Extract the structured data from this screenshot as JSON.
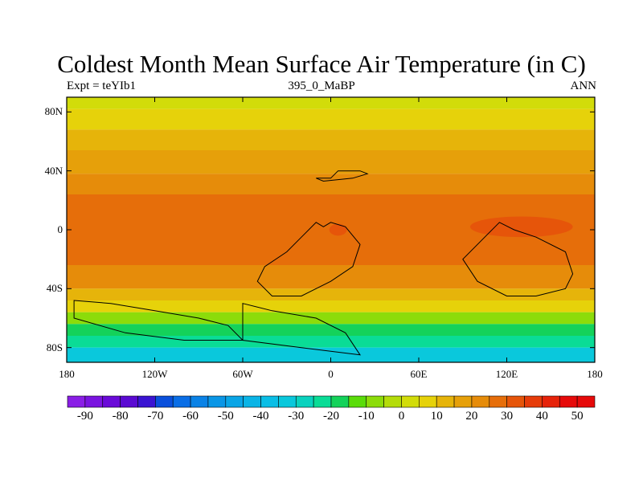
{
  "title": "Coldest Month Mean Surface Air Temperature (in C)",
  "left_subtitle": "Expt = teYIb1",
  "center_subtitle": "395_0_MaBP",
  "right_subtitle": "ANN",
  "lat_ticks": [
    {
      "lat": 80,
      "label": "80N"
    },
    {
      "lat": 40,
      "label": "40N"
    },
    {
      "lat": 0,
      "label": "0"
    },
    {
      "lat": -40,
      "label": "40S"
    },
    {
      "lat": -80,
      "label": "80S"
    }
  ],
  "lon_ticks": [
    {
      "lon": -180,
      "label": "180"
    },
    {
      "lon": -120,
      "label": "120W"
    },
    {
      "lon": -60,
      "label": "60W"
    },
    {
      "lon": 0,
      "label": "0"
    },
    {
      "lon": 60,
      "label": "60E"
    },
    {
      "lon": 120,
      "label": "120E"
    },
    {
      "lon": 180,
      "label": "180"
    }
  ],
  "colorbar": {
    "min": -95,
    "max": 55,
    "step": 5,
    "labels": [
      "-90",
      "-80",
      "-70",
      "-60",
      "-50",
      "-40",
      "-30",
      "-20",
      "-10",
      "0",
      "10",
      "20",
      "30",
      "40",
      "50"
    ],
    "colors": [
      "#8a1ee6",
      "#7a14e0",
      "#6a0ad8",
      "#5a0ad2",
      "#3a14d2",
      "#0a50dc",
      "#0a6ee6",
      "#0a82e6",
      "#0a96e6",
      "#0aa5e6",
      "#0ab4e6",
      "#0abee6",
      "#0ac8dc",
      "#0ad2be",
      "#0adc96",
      "#14d25a",
      "#5adc0a",
      "#8cdc0a",
      "#b4dc0a",
      "#d2dc0a",
      "#e6d20a",
      "#e6b40a",
      "#e6a00a",
      "#e68c0a",
      "#e66e0a",
      "#e6550a",
      "#e63c0a",
      "#e6230a",
      "#e60a0a",
      "#e60a0a"
    ]
  },
  "map_data": {
    "lon_range": [
      -180,
      180
    ],
    "lat_range": [
      -90,
      90
    ],
    "bands": [
      {
        "lat_top": 90,
        "lat_bottom": 82,
        "value": 3
      },
      {
        "lat_top": 82,
        "lat_bottom": 68,
        "value": 6
      },
      {
        "lat_top": 68,
        "lat_bottom": 54,
        "value": 11
      },
      {
        "lat_top": 54,
        "lat_bottom": 38,
        "value": 16
      },
      {
        "lat_top": 38,
        "lat_bottom": 24,
        "value": 22
      },
      {
        "lat_top": 24,
        "lat_bottom": -24,
        "value": 28
      },
      {
        "lat_top": -24,
        "lat_bottom": -40,
        "value": 22
      },
      {
        "lat_top": -40,
        "lat_bottom": -48,
        "value": 14
      },
      {
        "lat_top": -48,
        "lat_bottom": -56,
        "value": 6
      },
      {
        "lat_top": -56,
        "lat_bottom": -64,
        "value": -6
      },
      {
        "lat_top": -64,
        "lat_bottom": -72,
        "value": -16
      },
      {
        "lat_top": -72,
        "lat_bottom": -80,
        "value": -24
      },
      {
        "lat_top": -80,
        "lat_bottom": -90,
        "value": -32
      }
    ],
    "warm_patches": [
      {
        "lon": 130,
        "lat": 2,
        "rx": 35,
        "ry": 7,
        "value": 33
      },
      {
        "lon": 5,
        "lat": 0,
        "rx": 6,
        "ry": 4,
        "value": 33
      }
    ],
    "land_polygons": [
      [
        [
          -10,
          35
        ],
        [
          0,
          35
        ],
        [
          5,
          40
        ],
        [
          20,
          40
        ],
        [
          25,
          38
        ],
        [
          15,
          35
        ],
        [
          -5,
          33
        ]
      ],
      [
        [
          -10,
          5
        ],
        [
          -5,
          2
        ],
        [
          0,
          5
        ],
        [
          10,
          2
        ],
        [
          20,
          -10
        ],
        [
          15,
          -25
        ],
        [
          0,
          -35
        ],
        [
          -20,
          -45
        ],
        [
          -40,
          -45
        ],
        [
          -50,
          -35
        ],
        [
          -45,
          -25
        ],
        [
          -30,
          -15
        ],
        [
          -20,
          -5
        ]
      ],
      [
        [
          -60,
          -50
        ],
        [
          -40,
          -55
        ],
        [
          -10,
          -60
        ],
        [
          10,
          -70
        ],
        [
          20,
          -85
        ],
        [
          -20,
          -80
        ],
        [
          -60,
          -75
        ]
      ],
      [
        [
          90,
          -20
        ],
        [
          105,
          -5
        ],
        [
          115,
          5
        ],
        [
          125,
          0
        ],
        [
          140,
          -5
        ],
        [
          160,
          -15
        ],
        [
          165,
          -30
        ],
        [
          160,
          -40
        ],
        [
          140,
          -45
        ],
        [
          120,
          -45
        ],
        [
          100,
          -35
        ]
      ],
      [
        [
          -175,
          -48
        ],
        [
          -150,
          -50
        ],
        [
          -120,
          -55
        ],
        [
          -90,
          -60
        ],
        [
          -70,
          -65
        ],
        [
          -60,
          -75
        ],
        [
          -100,
          -75
        ],
        [
          -140,
          -70
        ],
        [
          -175,
          -60
        ]
      ]
    ]
  }
}
